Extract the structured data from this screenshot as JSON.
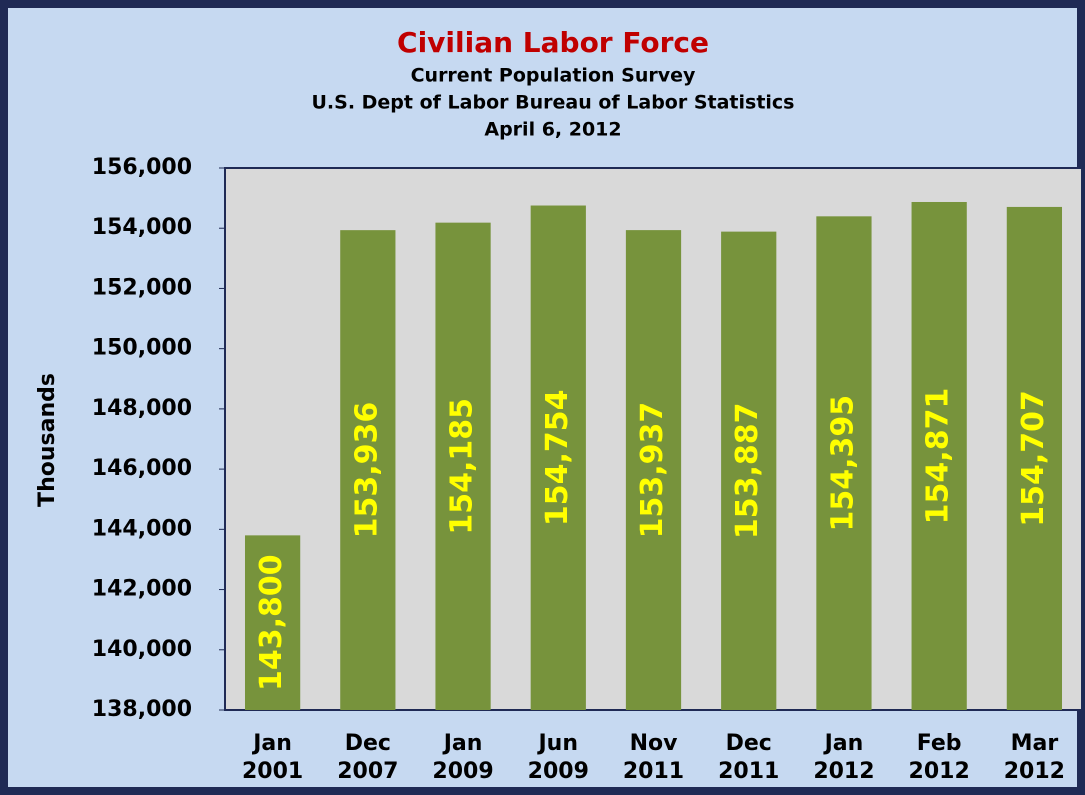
{
  "chart_data": {
    "type": "bar",
    "title": "Civilian Labor Force",
    "subtitle": [
      "Current Population Survey",
      "U.S. Dept of Labor Bureau of Labor Statistics",
      "April 6, 2012"
    ],
    "y_label": "Thousands",
    "categories": [
      "Jan 2001",
      "Dec 2007",
      "Jan 2009",
      "Jun 2009",
      "Nov 2011",
      "Dec 2011",
      "Jan 2012",
      "Feb 2012",
      "Mar 2012"
    ],
    "values": [
      143800,
      153936,
      154185,
      154754,
      153937,
      153887,
      154395,
      154871,
      154707
    ],
    "value_labels": [
      "143,800",
      "153,936",
      "154,185",
      "154,754",
      "153,937",
      "153,887",
      "154,395",
      "154,871",
      "154,707"
    ],
    "color": "#77933c",
    "label_color": "#ffff00",
    "ylim": [
      138000,
      156000
    ],
    "yticks": [
      {
        "value": 138000,
        "label": "138,000"
      },
      {
        "value": 140000,
        "label": "140,000"
      },
      {
        "value": 142000,
        "label": "142,000"
      },
      {
        "value": 144000,
        "label": "144,000"
      },
      {
        "value": 146000,
        "label": "146,000"
      },
      {
        "value": 148000,
        "label": "148,000"
      },
      {
        "value": 150000,
        "label": "150,000"
      },
      {
        "value": 152000,
        "label": "152,000"
      },
      {
        "value": 154000,
        "label": "154,000"
      },
      {
        "value": 156000,
        "label": "156,000"
      }
    ],
    "grid": false
  }
}
